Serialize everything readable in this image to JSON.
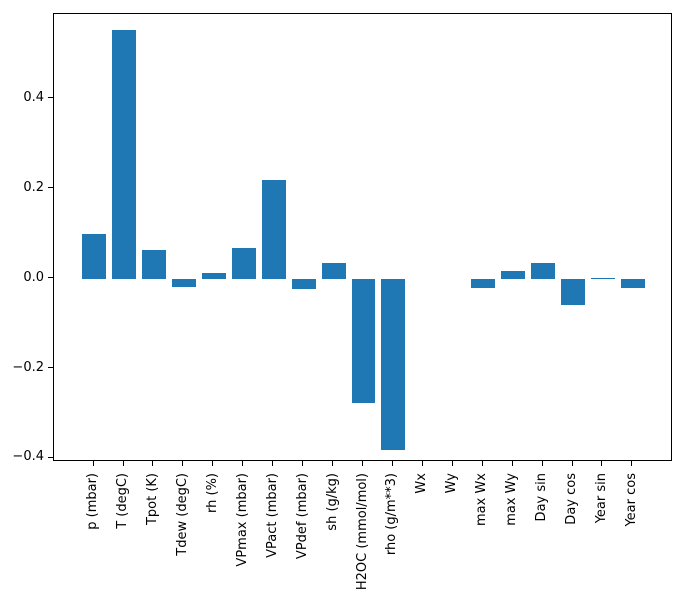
{
  "chart_data": {
    "type": "bar",
    "title": "",
    "categories": [
      "p (mbar)",
      "T (degC)",
      "Tpot (K)",
      "Tdew (degC)",
      "rh (%)",
      "VPmax (mbar)",
      "VPact (mbar)",
      "VPdef (mbar)",
      "sh (g/kg)",
      "H2OC (mmol/mol)",
      "rho (g/m**3)",
      "Wx",
      "Wy",
      "max Wx",
      "max Wy",
      "Day sin",
      "Day cos",
      "Year sin",
      "Year cos"
    ],
    "values": [
      0.1,
      0.553,
      0.063,
      -0.019,
      0.013,
      0.069,
      0.22,
      -0.024,
      0.034,
      -0.276,
      -0.381,
      0.0,
      0.0,
      -0.021,
      0.016,
      0.035,
      -0.059,
      0.002,
      -0.021
    ],
    "bar_color": "#1f77b4",
    "axis_color": "#000000",
    "background_color": "#ffffff",
    "ylim": [
      -0.408,
      0.589
    ],
    "yticks": [
      0.4,
      0.2,
      0.0,
      -0.2,
      -0.4
    ],
    "ytick_labels": [
      "0.4",
      "0.2",
      "0.0",
      "−0.2",
      "−0.4"
    ],
    "xlabel": "",
    "ylabel": "",
    "grid": false,
    "legend": null,
    "x_tick_rotation_deg": 90
  }
}
